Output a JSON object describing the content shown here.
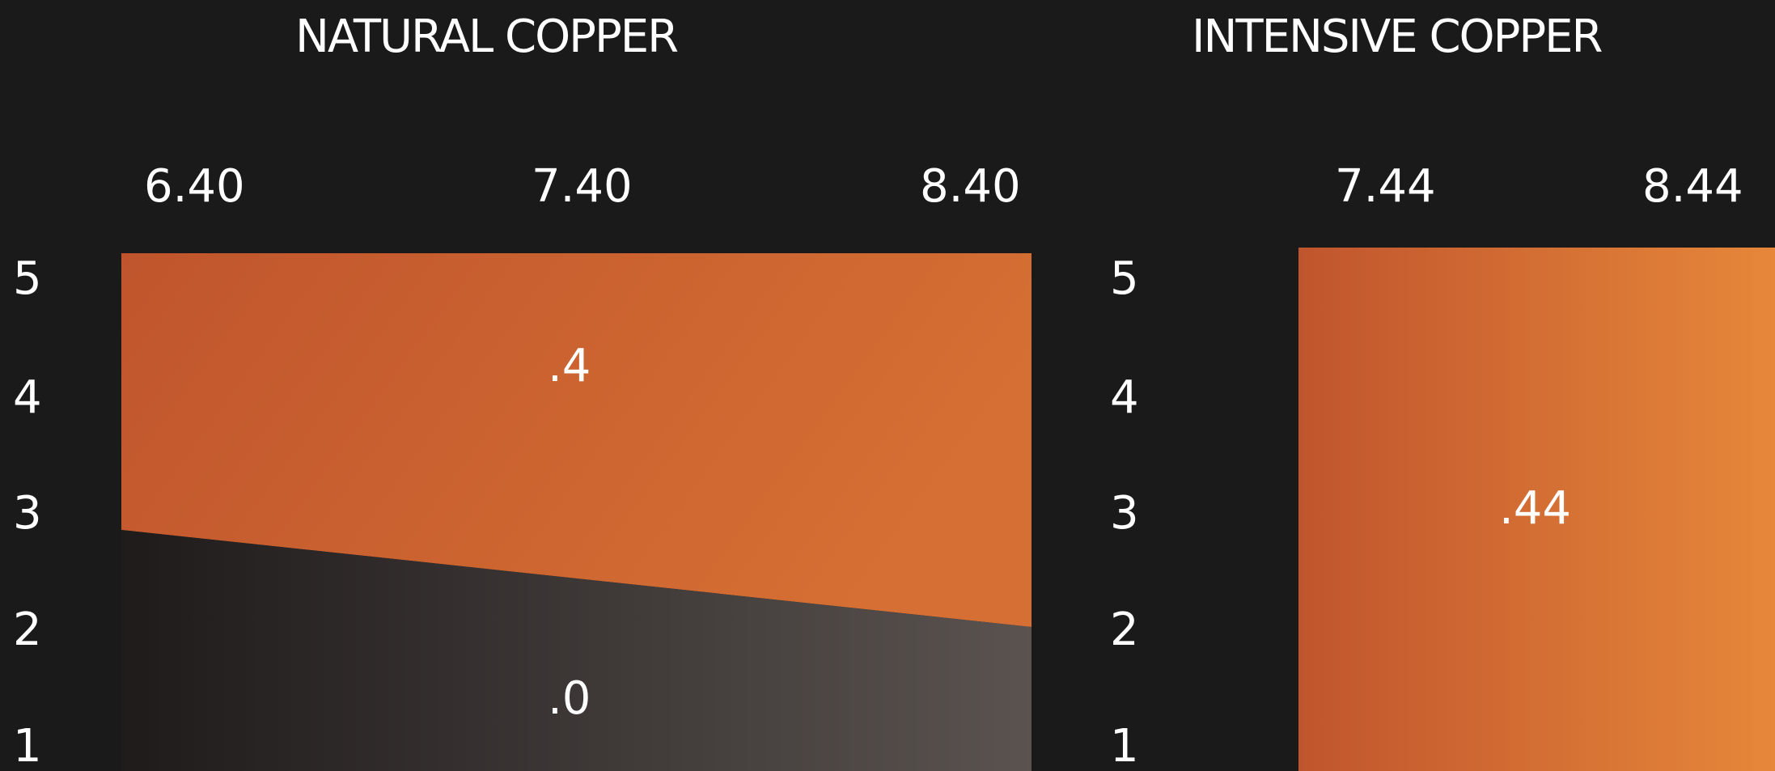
{
  "panels": [
    {
      "title": "NATURAL COPPER",
      "x_ticks": [
        "6.40",
        "7.40",
        "8.40"
      ],
      "y_ticks": [
        "5",
        "4",
        "3",
        "2",
        "1"
      ],
      "regions": [
        {
          "label": ".4",
          "color": "#c85a2e"
        },
        {
          "label": ".0",
          "color": "#4a4444"
        }
      ]
    },
    {
      "title": "INTENSIVE COPPER",
      "x_ticks": [
        "7.44",
        "8.44"
      ],
      "y_ticks": [
        "5",
        "4",
        "3",
        "2",
        "1"
      ],
      "regions": [
        {
          "label": ".44",
          "color": "#e07f35"
        }
      ]
    }
  ],
  "colors": {
    "background": "#1b1a1b",
    "copper_dark": "#c0552d",
    "copper_light": "#e6873a",
    "gray_dark": "#1f1b1b",
    "gray_light": "#5a5350"
  }
}
